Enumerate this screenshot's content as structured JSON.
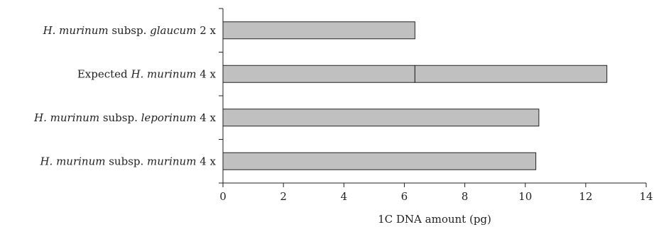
{
  "chart_data": {
    "type": "bar",
    "orientation": "horizontal",
    "categories": [
      {
        "parts": [
          {
            "t": "H. murinum",
            "i": true
          },
          {
            "t": " subsp. ",
            "i": false
          },
          {
            "t": "glaucum",
            "i": true
          },
          {
            "t": " 2 x",
            "i": false
          }
        ]
      },
      {
        "parts": [
          {
            "t": "Expected ",
            "i": false
          },
          {
            "t": "H. murinum",
            "i": true
          },
          {
            "t": " 4 x",
            "i": false
          }
        ]
      },
      {
        "parts": [
          {
            "t": "H. murinum",
            "i": true
          },
          {
            "t": " subsp. ",
            "i": false
          },
          {
            "t": "leporinum",
            "i": true
          },
          {
            "t": " 4 x",
            "i": false
          }
        ]
      },
      {
        "parts": [
          {
            "t": "H. murinum",
            "i": true
          },
          {
            "t": " subsp. ",
            "i": false
          },
          {
            "t": "murinum",
            "i": true
          },
          {
            "t": " 4 x",
            "i": false
          }
        ]
      }
    ],
    "bars": [
      {
        "segments": [
          6.35
        ]
      },
      {
        "segments": [
          6.35,
          6.35
        ]
      },
      {
        "segments": [
          10.45
        ]
      },
      {
        "segments": [
          10.35
        ]
      }
    ],
    "xlabel": "1C DNA amount (pg)",
    "xlim": [
      0,
      14
    ],
    "xticks": [
      0,
      2,
      4,
      6,
      8,
      10,
      12,
      14
    ],
    "bar_color": "#c0c0c0",
    "grid": false,
    "legend": "none"
  }
}
